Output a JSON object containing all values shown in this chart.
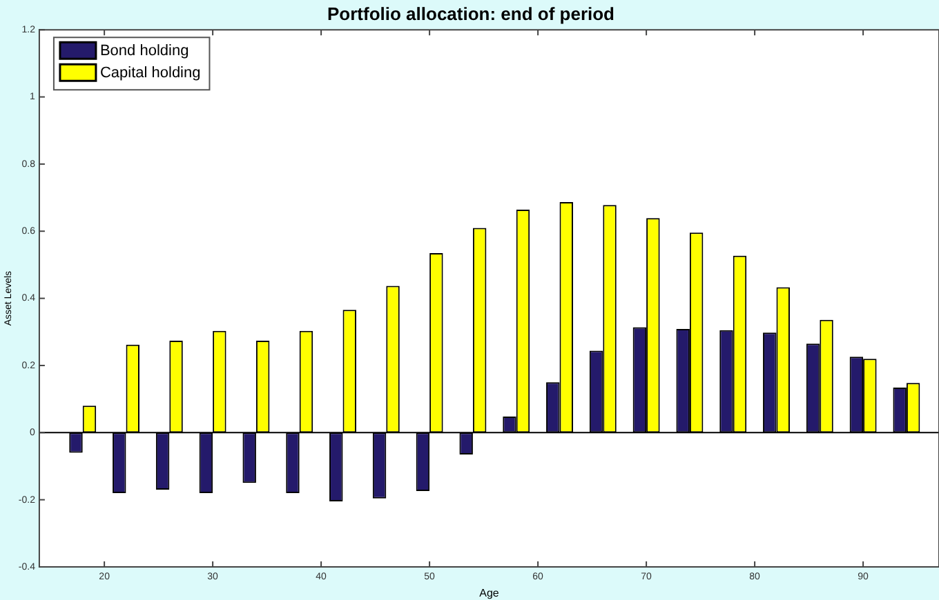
{
  "chart_data": {
    "type": "bar",
    "title": "Portfolio allocation: end of period",
    "xlabel": "Age",
    "ylabel": "Asset Levels",
    "x": [
      18,
      22,
      26,
      30,
      34,
      38,
      42,
      46,
      50,
      54,
      58,
      62,
      66,
      70,
      74,
      78,
      82,
      86,
      90,
      94
    ],
    "series": [
      {
        "name": "Bond holding",
        "color": "#241a6b",
        "values": [
          -0.06,
          -0.18,
          -0.17,
          -0.18,
          -0.15,
          -0.18,
          -0.205,
          -0.196,
          -0.174,
          -0.065,
          0.048,
          0.15,
          0.244,
          0.314,
          0.309,
          0.305,
          0.298,
          0.265,
          0.226,
          0.134
        ]
      },
      {
        "name": "Capital holding",
        "color": "#ffff00",
        "values": [
          0.08,
          0.262,
          0.274,
          0.303,
          0.274,
          0.303,
          0.366,
          0.437,
          0.535,
          0.61,
          0.664,
          0.687,
          0.678,
          0.639,
          0.596,
          0.527,
          0.433,
          0.336,
          0.22,
          0.148
        ]
      }
    ],
    "xlim": [
      14,
      97
    ],
    "xticks": [
      20,
      30,
      40,
      50,
      60,
      70,
      80,
      90
    ],
    "ylim": [
      -0.4,
      1.2
    ],
    "yticks": [
      -0.4,
      -0.2,
      0,
      0.2,
      0.4,
      0.6,
      0.8,
      1,
      1.2
    ],
    "ref_lines": [
      {
        "axis": "y",
        "value": 0,
        "color": "#000000"
      }
    ],
    "grid": false,
    "legend": "top left"
  }
}
